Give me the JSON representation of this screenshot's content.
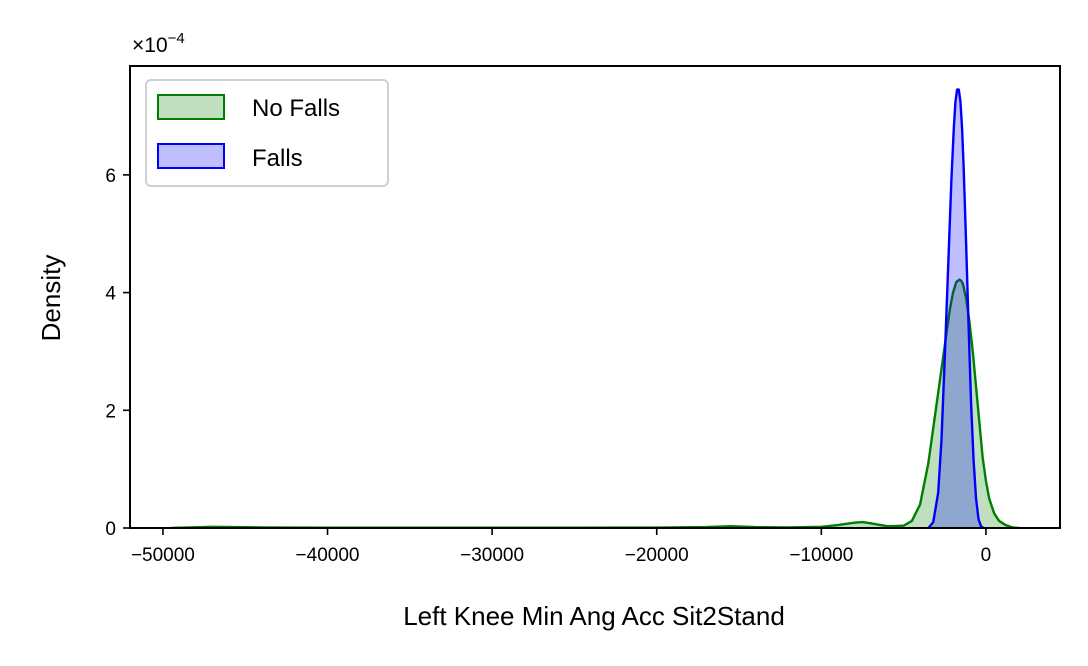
{
  "chart_data": {
    "type": "area",
    "title": "",
    "xlabel": "Left Knee Min Ang Acc Sit2Stand",
    "ylabel": "Density",
    "y_multiplier": "×10",
    "y_multiplier_exponent": "−4",
    "xlim": [
      -52000,
      4500
    ],
    "ylim": [
      0,
      7.85
    ],
    "x_ticks": [
      -50000,
      -40000,
      -30000,
      -20000,
      -10000,
      0
    ],
    "x_tick_labels": [
      "−50000",
      "−40000",
      "−30000",
      "−20000",
      "−10000",
      "0"
    ],
    "y_ticks": [
      0,
      2,
      4,
      6
    ],
    "y_tick_labels": [
      "0",
      "2",
      "4",
      "6"
    ],
    "grid": false,
    "legend_position": "top-left",
    "series": [
      {
        "name": "No Falls",
        "color": "#008000",
        "fill": "rgba(0,128,0,0.25)",
        "x": [
          -49500,
          -47000,
          -44000,
          -40000,
          -35000,
          -30000,
          -25000,
          -20000,
          -17000,
          -15500,
          -14000,
          -12000,
          -10000,
          -9000,
          -8000,
          -7500,
          -7000,
          -6000,
          -5000,
          -4500,
          -4000,
          -3500,
          -3000,
          -2500,
          -2200,
          -2000,
          -1800,
          -1600,
          -1500,
          -1400,
          -1200,
          -1000,
          -800,
          -600,
          -400,
          -200,
          0,
          200,
          500,
          800,
          1200,
          1600,
          2000
        ],
        "y": [
          0.0,
          0.02,
          0.01,
          0.005,
          0.005,
          0.005,
          0.005,
          0.008,
          0.015,
          0.03,
          0.015,
          0.01,
          0.02,
          0.05,
          0.09,
          0.1,
          0.08,
          0.03,
          0.04,
          0.12,
          0.4,
          1.1,
          2.1,
          3.1,
          3.7,
          4.0,
          4.18,
          4.22,
          4.2,
          4.15,
          3.9,
          3.5,
          3.0,
          2.4,
          1.8,
          1.2,
          0.8,
          0.5,
          0.25,
          0.12,
          0.05,
          0.01,
          0.0
        ]
      },
      {
        "name": "Falls",
        "color": "#0000ff",
        "fill": "rgba(0,0,255,0.25)",
        "x": [
          -3500,
          -3200,
          -2900,
          -2700,
          -2500,
          -2300,
          -2100,
          -1950,
          -1850,
          -1750,
          -1650,
          -1550,
          -1450,
          -1350,
          -1200,
          -1050,
          -900,
          -750,
          -600,
          -450,
          -300,
          -150
        ],
        "y": [
          0.0,
          0.1,
          0.6,
          1.5,
          2.9,
          4.4,
          5.9,
          6.8,
          7.25,
          7.45,
          7.45,
          7.25,
          6.8,
          6.1,
          4.8,
          3.4,
          2.1,
          1.15,
          0.5,
          0.15,
          0.03,
          0.0
        ]
      }
    ]
  }
}
